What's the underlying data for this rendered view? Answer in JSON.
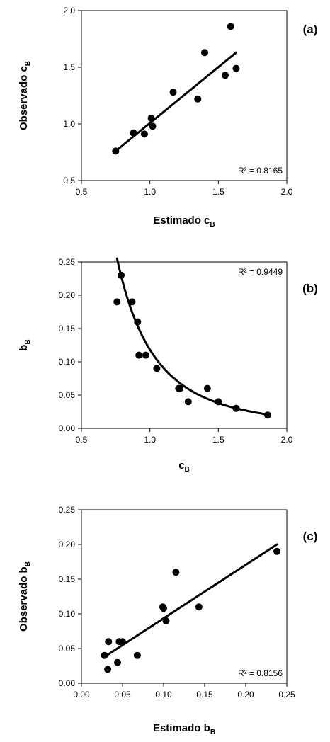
{
  "chart_data": [
    {
      "type": "scatter",
      "panel_label": "(a)",
      "xlabel": "Estimado c",
      "xlabel_sub": "B",
      "ylabel": "Observado c",
      "ylabel_sub": "B",
      "xlim": [
        0.5,
        2.0
      ],
      "ylim": [
        0.5,
        2.0
      ],
      "xticks": [
        "0.5",
        "1.0",
        "1.5",
        "2.0"
      ],
      "yticks": [
        "0.5",
        "1.0",
        "1.5",
        "2.0"
      ],
      "r2_label": "R² = 0.8165",
      "trendline": {
        "kind": "linear",
        "x": [
          0.75,
          1.63
        ],
        "y": [
          0.76,
          1.63
        ]
      },
      "points": [
        {
          "x": 0.75,
          "y": 0.76
        },
        {
          "x": 0.88,
          "y": 0.92
        },
        {
          "x": 0.96,
          "y": 0.91
        },
        {
          "x": 1.01,
          "y": 1.05
        },
        {
          "x": 1.02,
          "y": 0.98
        },
        {
          "x": 1.17,
          "y": 1.28
        },
        {
          "x": 1.35,
          "y": 1.22
        },
        {
          "x": 1.4,
          "y": 1.63
        },
        {
          "x": 1.55,
          "y": 1.43
        },
        {
          "x": 1.59,
          "y": 1.86
        },
        {
          "x": 1.63,
          "y": 1.49
        }
      ]
    },
    {
      "type": "scatter",
      "panel_label": "(b)",
      "xlabel": "c",
      "xlabel_sub": "B",
      "ylabel": "b",
      "ylabel_sub": "B",
      "xlim": [
        0.5,
        2.0
      ],
      "ylim": [
        0.0,
        0.25
      ],
      "xticks": [
        "0.5",
        "1.0",
        "1.5",
        "2.0"
      ],
      "yticks": [
        "0.00",
        "0.05",
        "0.10",
        "0.15",
        "0.20",
        "0.25"
      ],
      "r2_label": "R² = 0.9449",
      "trendline": {
        "kind": "power",
        "x": [
          0.76,
          1.86
        ],
        "a": 0.1183,
        "b": -2.8
      },
      "points": [
        {
          "x": 0.76,
          "y": 0.19
        },
        {
          "x": 0.79,
          "y": 0.23
        },
        {
          "x": 0.87,
          "y": 0.19
        },
        {
          "x": 0.91,
          "y": 0.16
        },
        {
          "x": 0.92,
          "y": 0.11
        },
        {
          "x": 0.97,
          "y": 0.11
        },
        {
          "x": 1.05,
          "y": 0.09
        },
        {
          "x": 1.21,
          "y": 0.06
        },
        {
          "x": 1.22,
          "y": 0.06
        },
        {
          "x": 1.28,
          "y": 0.04
        },
        {
          "x": 1.42,
          "y": 0.06
        },
        {
          "x": 1.5,
          "y": 0.04
        },
        {
          "x": 1.63,
          "y": 0.03
        },
        {
          "x": 1.86,
          "y": 0.02
        }
      ]
    },
    {
      "type": "scatter",
      "panel_label": "(c)",
      "xlabel": "Estimado b",
      "xlabel_sub": "B",
      "ylabel": "Observado b",
      "ylabel_sub": "B",
      "xlim": [
        0.0,
        0.25
      ],
      "ylim": [
        0.0,
        0.25
      ],
      "xticks": [
        "0.00",
        "0.05",
        "0.10",
        "0.15",
        "0.20",
        "0.25"
      ],
      "yticks": [
        "0.00",
        "0.05",
        "0.10",
        "0.15",
        "0.20",
        "0.25"
      ],
      "r2_label": "R² = 0.8156",
      "trendline": {
        "kind": "linear",
        "x": [
          0.028,
          0.238
        ],
        "y": [
          0.038,
          0.2
        ]
      },
      "points": [
        {
          "x": 0.028,
          "y": 0.04
        },
        {
          "x": 0.032,
          "y": 0.02
        },
        {
          "x": 0.033,
          "y": 0.06
        },
        {
          "x": 0.044,
          "y": 0.03
        },
        {
          "x": 0.046,
          "y": 0.06
        },
        {
          "x": 0.05,
          "y": 0.06
        },
        {
          "x": 0.068,
          "y": 0.04
        },
        {
          "x": 0.099,
          "y": 0.11
        },
        {
          "x": 0.1,
          "y": 0.108
        },
        {
          "x": 0.103,
          "y": 0.09
        },
        {
          "x": 0.115,
          "y": 0.16
        },
        {
          "x": 0.143,
          "y": 0.11
        },
        {
          "x": 0.238,
          "y": 0.19
        }
      ]
    }
  ]
}
